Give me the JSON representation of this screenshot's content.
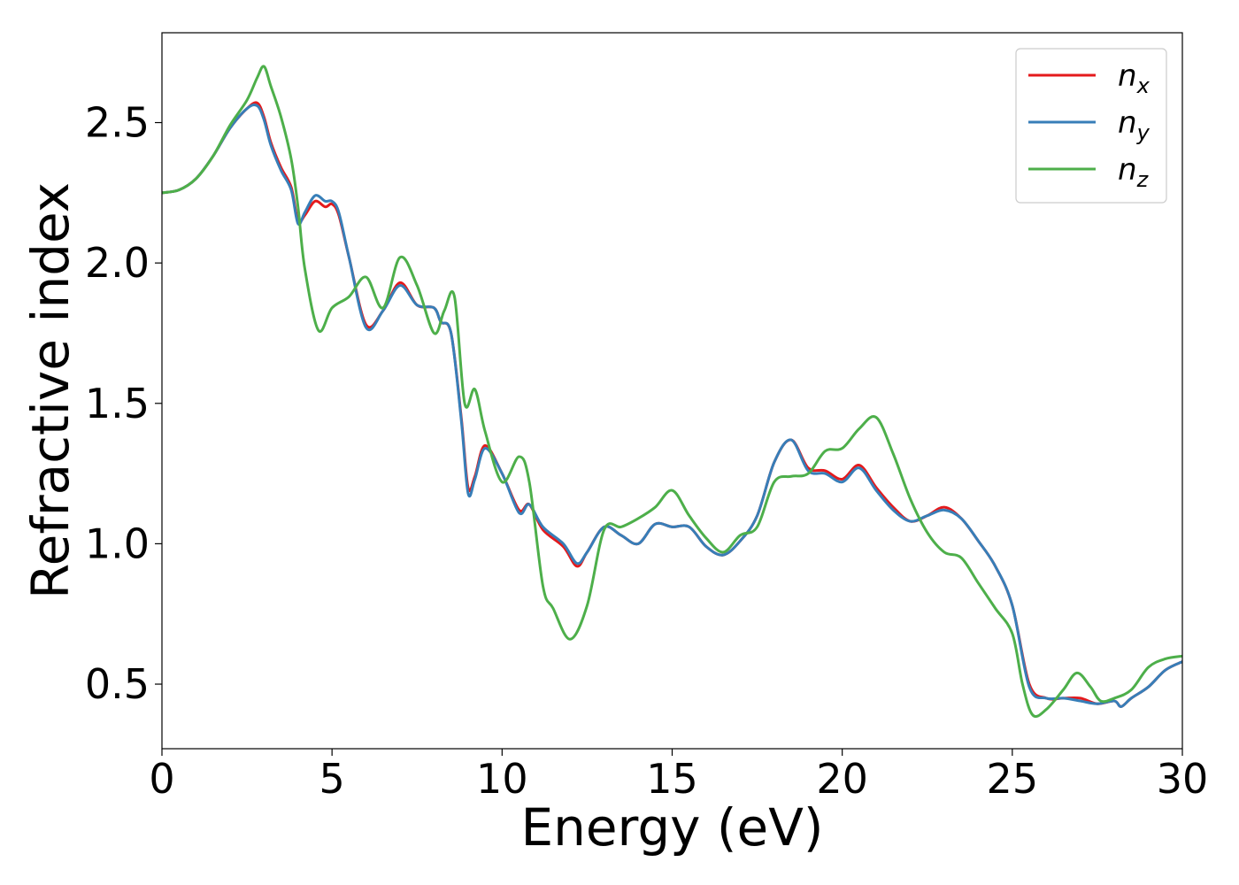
{
  "chart_data": {
    "type": "line",
    "xlabel": "Energy (eV)",
    "ylabel": "Refractive index",
    "xlim": [
      0,
      30
    ],
    "ylim": [
      0.27,
      2.82
    ],
    "xticks": [
      0,
      5,
      10,
      15,
      20,
      25,
      30
    ],
    "xtick_labels": [
      "0",
      "5",
      "10",
      "15",
      "20",
      "25",
      "30"
    ],
    "yticks": [
      0.5,
      1.0,
      1.5,
      2.0,
      2.5
    ],
    "ytick_labels": [
      "0.5",
      "1.0",
      "1.5",
      "2.0",
      "2.5"
    ],
    "grid": false,
    "legend_position": "top-right",
    "series": [
      {
        "name": "n",
        "subscript": "x",
        "color": "#e41a1c",
        "x": [
          0,
          0.5,
          1.0,
          1.5,
          2.0,
          2.5,
          2.8,
          3.0,
          3.2,
          3.5,
          3.8,
          4.0,
          4.2,
          4.5,
          4.8,
          5.0,
          5.2,
          5.5,
          6.0,
          6.5,
          7.0,
          7.5,
          8.0,
          8.2,
          8.5,
          8.8,
          9.0,
          9.2,
          9.5,
          10.0,
          10.5,
          10.8,
          11.2,
          11.8,
          12.2,
          12.5,
          13.0,
          13.5,
          14.0,
          14.5,
          15.0,
          15.5,
          16.0,
          16.5,
          17.0,
          17.5,
          18.0,
          18.5,
          19.0,
          19.5,
          20.0,
          20.5,
          21.0,
          21.5,
          22.0,
          22.5,
          23.0,
          23.5,
          24.0,
          24.5,
          25.0,
          25.5,
          26.0,
          26.5,
          27.0,
          27.5,
          28.0,
          28.2,
          28.5,
          29.0,
          29.5,
          30.0
        ],
        "values": [
          2.25,
          2.26,
          2.3,
          2.38,
          2.48,
          2.55,
          2.57,
          2.52,
          2.43,
          2.34,
          2.27,
          2.15,
          2.17,
          2.22,
          2.2,
          2.21,
          2.17,
          2.02,
          1.78,
          1.83,
          1.93,
          1.85,
          1.84,
          1.79,
          1.75,
          1.45,
          1.2,
          1.24,
          1.35,
          1.25,
          1.12,
          1.14,
          1.05,
          0.99,
          0.92,
          0.97,
          1.06,
          1.03,
          1.0,
          1.07,
          1.06,
          1.06,
          0.99,
          0.96,
          1.01,
          1.1,
          1.29,
          1.37,
          1.27,
          1.26,
          1.23,
          1.28,
          1.2,
          1.13,
          1.08,
          1.1,
          1.13,
          1.09,
          1.01,
          0.92,
          0.78,
          0.5,
          0.45,
          0.45,
          0.45,
          0.43,
          0.44,
          0.42,
          0.45,
          0.49,
          0.55,
          0.58
        ]
      },
      {
        "name": "n",
        "subscript": "y",
        "color": "#377eb8",
        "x": [
          0,
          0.5,
          1.0,
          1.5,
          2.0,
          2.5,
          2.8,
          3.0,
          3.2,
          3.5,
          3.8,
          4.0,
          4.2,
          4.5,
          4.8,
          5.0,
          5.2,
          5.5,
          6.0,
          6.5,
          7.0,
          7.5,
          8.0,
          8.2,
          8.5,
          8.8,
          9.0,
          9.2,
          9.5,
          10.0,
          10.5,
          10.8,
          11.2,
          11.8,
          12.2,
          12.5,
          13.0,
          13.5,
          14.0,
          14.5,
          15.0,
          15.5,
          16.0,
          16.5,
          17.0,
          17.5,
          18.0,
          18.5,
          19.0,
          19.5,
          20.0,
          20.5,
          21.0,
          21.5,
          22.0,
          22.5,
          23.0,
          23.5,
          24.0,
          24.5,
          25.0,
          25.5,
          26.0,
          26.5,
          27.0,
          27.5,
          28.0,
          28.2,
          28.5,
          29.0,
          29.5,
          30.0
        ],
        "values": [
          2.25,
          2.26,
          2.3,
          2.38,
          2.48,
          2.55,
          2.56,
          2.51,
          2.42,
          2.33,
          2.26,
          2.14,
          2.18,
          2.24,
          2.22,
          2.22,
          2.18,
          2.02,
          1.77,
          1.83,
          1.92,
          1.85,
          1.84,
          1.79,
          1.75,
          1.44,
          1.18,
          1.23,
          1.34,
          1.25,
          1.11,
          1.14,
          1.06,
          1.0,
          0.93,
          0.97,
          1.06,
          1.03,
          1.0,
          1.07,
          1.06,
          1.06,
          0.99,
          0.96,
          1.01,
          1.1,
          1.29,
          1.37,
          1.26,
          1.25,
          1.22,
          1.27,
          1.19,
          1.12,
          1.08,
          1.1,
          1.12,
          1.09,
          1.01,
          0.92,
          0.78,
          0.49,
          0.45,
          0.45,
          0.44,
          0.43,
          0.44,
          0.42,
          0.45,
          0.49,
          0.55,
          0.58
        ]
      },
      {
        "name": "n",
        "subscript": "z",
        "color": "#4daf4a",
        "x": [
          0,
          0.5,
          1.0,
          1.5,
          2.0,
          2.5,
          2.8,
          3.0,
          3.2,
          3.5,
          3.8,
          4.0,
          4.2,
          4.6,
          5.0,
          5.5,
          6.0,
          6.5,
          7.0,
          7.5,
          8.0,
          8.3,
          8.6,
          8.9,
          9.2,
          9.5,
          10.0,
          10.5,
          10.8,
          11.2,
          11.5,
          12.0,
          12.5,
          13.0,
          13.5,
          14.0,
          14.5,
          15.0,
          15.5,
          16.0,
          16.5,
          17.0,
          17.5,
          18.0,
          18.5,
          19.0,
          19.5,
          20.0,
          20.5,
          21.0,
          21.5,
          22.0,
          22.5,
          23.0,
          23.5,
          24.0,
          24.5,
          25.0,
          25.3,
          25.6,
          26.0,
          26.5,
          26.9,
          27.3,
          27.6,
          28.0,
          28.5,
          29.0,
          29.5,
          30.0
        ],
        "values": [
          2.25,
          2.26,
          2.3,
          2.38,
          2.49,
          2.58,
          2.66,
          2.7,
          2.63,
          2.52,
          2.37,
          2.2,
          1.98,
          1.76,
          1.84,
          1.88,
          1.95,
          1.84,
          2.02,
          1.92,
          1.75,
          1.83,
          1.88,
          1.5,
          1.55,
          1.4,
          1.22,
          1.31,
          1.22,
          0.85,
          0.77,
          0.66,
          0.78,
          1.05,
          1.06,
          1.09,
          1.13,
          1.19,
          1.1,
          1.02,
          0.97,
          1.03,
          1.06,
          1.22,
          1.24,
          1.25,
          1.33,
          1.34,
          1.41,
          1.45,
          1.32,
          1.16,
          1.04,
          0.97,
          0.95,
          0.86,
          0.77,
          0.68,
          0.5,
          0.39,
          0.41,
          0.48,
          0.54,
          0.49,
          0.44,
          0.45,
          0.48,
          0.56,
          0.59,
          0.6
        ]
      }
    ]
  }
}
